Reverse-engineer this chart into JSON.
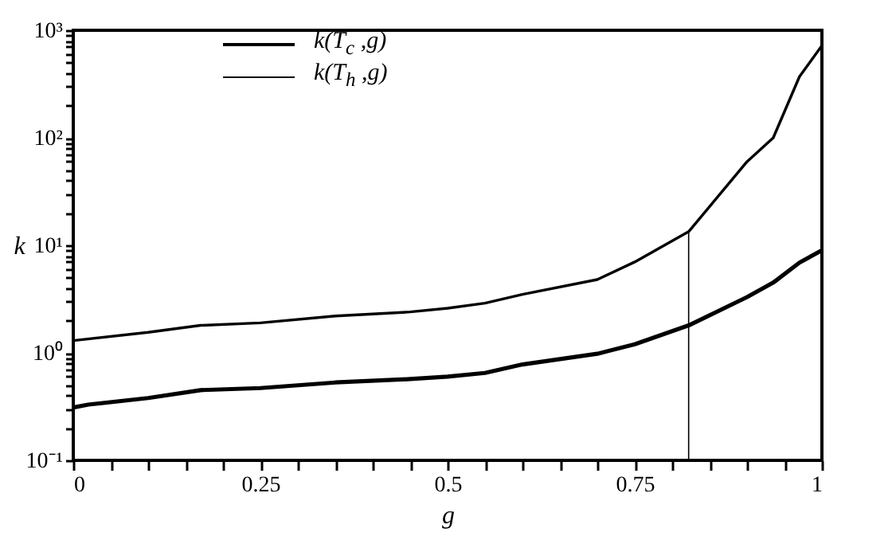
{
  "chart_data": {
    "type": "line",
    "xlabel": "g",
    "ylabel": "k",
    "log": "y",
    "grid": false,
    "legend": "top left",
    "marker": "none",
    "line_style": "solid",
    "xlim": [
      0,
      1
    ],
    "ylim": [
      0.1,
      1000
    ],
    "xticks": [
      0,
      {
        "value": 0.05,
        "label": null
      },
      {
        "value": 0.1,
        "label": null
      },
      {
        "value": 0.15,
        "label": null
      },
      {
        "value": 0.2,
        "label": null
      },
      0.25,
      {
        "value": 0.3,
        "label": null
      },
      {
        "value": 0.35,
        "label": null
      },
      {
        "value": 0.4,
        "label": null
      },
      {
        "value": 0.45,
        "label": null
      },
      0.5,
      {
        "value": 0.55,
        "label": null
      },
      {
        "value": 0.6,
        "label": null
      },
      {
        "value": 0.65,
        "label": null
      },
      {
        "value": 0.7,
        "label": null
      },
      0.75,
      {
        "value": 0.8,
        "label": null
      },
      {
        "value": 0.85,
        "label": null
      },
      {
        "value": 0.9,
        "label": null
      },
      {
        "value": 0.95,
        "label": null
      },
      1
    ],
    "yticks": [
      {
        "value": 0.1,
        "label": "10⁻¹"
      },
      {
        "value": 0.2,
        "label": null
      },
      {
        "value": 0.3,
        "label": null
      },
      {
        "value": 0.4,
        "label": null
      },
      {
        "value": 0.5,
        "label": null
      },
      {
        "value": 0.6,
        "label": null
      },
      {
        "value": 0.7,
        "label": null
      },
      {
        "value": 0.8,
        "label": null
      },
      {
        "value": 0.9,
        "label": null
      },
      {
        "value": 1,
        "label": "10⁰"
      },
      {
        "value": 2,
        "label": null
      },
      {
        "value": 3,
        "label": null
      },
      {
        "value": 4,
        "label": null
      },
      {
        "value": 5,
        "label": null
      },
      {
        "value": 6,
        "label": null
      },
      {
        "value": 7,
        "label": null
      },
      {
        "value": 8,
        "label": null
      },
      {
        "value": 9,
        "label": null
      },
      {
        "value": 10,
        "label": "10¹"
      },
      {
        "value": 20,
        "label": null
      },
      {
        "value": 30,
        "label": null
      },
      {
        "value": 40,
        "label": null
      },
      {
        "value": 50,
        "label": null
      },
      {
        "value": 60,
        "label": null
      },
      {
        "value": 70,
        "label": null
      },
      {
        "value": 80,
        "label": null
      },
      {
        "value": 90,
        "label": null
      },
      {
        "value": 100,
        "label": "10²"
      },
      {
        "value": 200,
        "label": null
      },
      {
        "value": 300,
        "label": null
      },
      {
        "value": 400,
        "label": null
      },
      {
        "value": 500,
        "label": null
      },
      {
        "value": 600,
        "label": null
      },
      {
        "value": 700,
        "label": null
      },
      {
        "value": 800,
        "label": null
      },
      {
        "value": 900,
        "label": null
      },
      {
        "value": 1000,
        "label": "10³"
      }
    ],
    "series": [
      {
        "name": "k(T$_{c}$ ,g)",
        "color": "#000000",
        "x": [
          0,
          0.02,
          0.1,
          0.17,
          0.25,
          0.35,
          0.45,
          0.5,
          0.55,
          0.6,
          0.7,
          0.75,
          0.822,
          0.9,
          0.935,
          0.97,
          1
        ],
        "values": [
          0.31,
          0.33,
          0.38,
          0.45,
          0.47,
          0.53,
          0.57,
          0.6,
          0.65,
          0.78,
          0.98,
          1.2,
          1.8,
          3.3,
          4.5,
          6.9,
          9
        ]
      },
      {
        "name": "k(T$_{h}$ ,g)",
        "color": "#000000",
        "x": [
          0,
          0.1,
          0.17,
          0.25,
          0.35,
          0.45,
          0.5,
          0.55,
          0.6,
          0.7,
          0.75,
          0.822,
          0.9,
          0.935,
          0.97,
          1
        ],
        "values": [
          1.3,
          1.55,
          1.8,
          1.9,
          2.2,
          2.4,
          2.6,
          2.9,
          3.5,
          4.8,
          7,
          13.4,
          60,
          100,
          370,
          720
        ]
      },
      {
        "color": "#000000",
        "x": [
          0.822,
          0.822
        ],
        "values": [
          0.1,
          13.4
        ]
      }
    ]
  }
}
